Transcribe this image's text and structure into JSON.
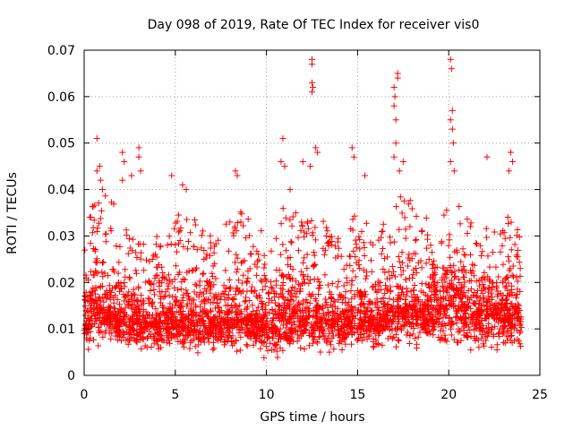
{
  "chart_data": {
    "type": "scatter",
    "title": "Day 098 of 2019, Rate Of TEC Index for receiver vis0",
    "xlabel": "GPS time / hours",
    "ylabel": "ROTI / TECUs",
    "xlim": [
      0,
      25
    ],
    "ylim": [
      0,
      0.07
    ],
    "xticks": [
      0,
      5,
      10,
      15,
      20,
      25
    ],
    "xtick_labels": [
      "0",
      "5",
      "10",
      "15",
      "20",
      "25"
    ],
    "yticks": [
      0,
      0.01,
      0.02,
      0.03,
      0.04,
      0.05,
      0.06,
      0.07
    ],
    "ytick_labels": [
      "0",
      "0.01",
      "0.02",
      "0.03",
      "0.04",
      "0.05",
      "0.06",
      "0.07"
    ],
    "grid": true,
    "marker": "+",
    "color": "#ff0000",
    "series": [
      {
        "name": "ROTI",
        "profile": [
          {
            "x": 0.0,
            "low": 0.005,
            "mid": 0.014,
            "high": 0.03
          },
          {
            "x": 0.7,
            "low": 0.005,
            "mid": 0.016,
            "high": 0.04
          },
          {
            "x": 1.5,
            "low": 0.005,
            "mid": 0.014,
            "high": 0.038
          },
          {
            "x": 2.5,
            "low": 0.004,
            "mid": 0.013,
            "high": 0.03
          },
          {
            "x": 3.5,
            "low": 0.004,
            "mid": 0.012,
            "high": 0.028
          },
          {
            "x": 5.5,
            "low": 0.004,
            "mid": 0.013,
            "high": 0.036
          },
          {
            "x": 7.0,
            "low": 0.004,
            "mid": 0.012,
            "high": 0.03
          },
          {
            "x": 8.5,
            "low": 0.004,
            "mid": 0.014,
            "high": 0.036
          },
          {
            "x": 10.0,
            "low": 0.003,
            "mid": 0.012,
            "high": 0.03
          },
          {
            "x": 11.0,
            "low": 0.003,
            "mid": 0.015,
            "high": 0.04
          },
          {
            "x": 12.5,
            "low": 0.004,
            "mid": 0.014,
            "high": 0.036
          },
          {
            "x": 14.0,
            "low": 0.004,
            "mid": 0.012,
            "high": 0.03
          },
          {
            "x": 15.0,
            "low": 0.004,
            "mid": 0.014,
            "high": 0.036
          },
          {
            "x": 16.0,
            "low": 0.005,
            "mid": 0.013,
            "high": 0.03
          },
          {
            "x": 17.5,
            "low": 0.005,
            "mid": 0.016,
            "high": 0.04
          },
          {
            "x": 19.0,
            "low": 0.005,
            "mid": 0.015,
            "high": 0.033
          },
          {
            "x": 20.3,
            "low": 0.004,
            "mid": 0.018,
            "high": 0.038
          },
          {
            "x": 21.5,
            "low": 0.004,
            "mid": 0.015,
            "high": 0.032
          },
          {
            "x": 23.2,
            "low": 0.004,
            "mid": 0.015,
            "high": 0.036
          },
          {
            "x": 24.0,
            "low": 0.004,
            "mid": 0.014,
            "high": 0.03
          }
        ],
        "outliers": [
          {
            "x": 0.7,
            "y": 0.051
          },
          {
            "x": 0.7,
            "y": 0.044
          },
          {
            "x": 0.85,
            "y": 0.045
          },
          {
            "x": 0.9,
            "y": 0.042
          },
          {
            "x": 1.0,
            "y": 0.04
          },
          {
            "x": 2.1,
            "y": 0.048
          },
          {
            "x": 2.2,
            "y": 0.046
          },
          {
            "x": 2.1,
            "y": 0.042
          },
          {
            "x": 2.6,
            "y": 0.043
          },
          {
            "x": 3.0,
            "y": 0.049
          },
          {
            "x": 3.0,
            "y": 0.047
          },
          {
            "x": 3.1,
            "y": 0.044
          },
          {
            "x": 4.8,
            "y": 0.043
          },
          {
            "x": 5.4,
            "y": 0.041
          },
          {
            "x": 5.6,
            "y": 0.04
          },
          {
            "x": 8.3,
            "y": 0.044
          },
          {
            "x": 8.4,
            "y": 0.043
          },
          {
            "x": 10.9,
            "y": 0.051
          },
          {
            "x": 10.8,
            "y": 0.046
          },
          {
            "x": 11.0,
            "y": 0.045
          },
          {
            "x": 11.3,
            "y": 0.04
          },
          {
            "x": 12.0,
            "y": 0.046
          },
          {
            "x": 12.5,
            "y": 0.068
          },
          {
            "x": 12.5,
            "y": 0.067
          },
          {
            "x": 12.5,
            "y": 0.063
          },
          {
            "x": 12.55,
            "y": 0.062
          },
          {
            "x": 12.5,
            "y": 0.061
          },
          {
            "x": 12.4,
            "y": 0.045
          },
          {
            "x": 12.7,
            "y": 0.049
          },
          {
            "x": 12.8,
            "y": 0.048
          },
          {
            "x": 14.7,
            "y": 0.049
          },
          {
            "x": 14.8,
            "y": 0.047
          },
          {
            "x": 15.4,
            "y": 0.043
          },
          {
            "x": 17.0,
            "y": 0.062
          },
          {
            "x": 17.05,
            "y": 0.06
          },
          {
            "x": 17.0,
            "y": 0.058
          },
          {
            "x": 17.1,
            "y": 0.055
          },
          {
            "x": 17.2,
            "y": 0.065
          },
          {
            "x": 17.2,
            "y": 0.064
          },
          {
            "x": 17.1,
            "y": 0.05
          },
          {
            "x": 17.0,
            "y": 0.047
          },
          {
            "x": 17.5,
            "y": 0.046
          },
          {
            "x": 17.3,
            "y": 0.044
          },
          {
            "x": 20.1,
            "y": 0.068
          },
          {
            "x": 20.15,
            "y": 0.066
          },
          {
            "x": 20.2,
            "y": 0.057
          },
          {
            "x": 20.1,
            "y": 0.055
          },
          {
            "x": 20.2,
            "y": 0.053
          },
          {
            "x": 20.25,
            "y": 0.05
          },
          {
            "x": 20.1,
            "y": 0.046
          },
          {
            "x": 20.3,
            "y": 0.044
          },
          {
            "x": 22.1,
            "y": 0.047
          },
          {
            "x": 23.4,
            "y": 0.048
          },
          {
            "x": 23.5,
            "y": 0.046
          },
          {
            "x": 23.3,
            "y": 0.044
          }
        ]
      }
    ]
  }
}
